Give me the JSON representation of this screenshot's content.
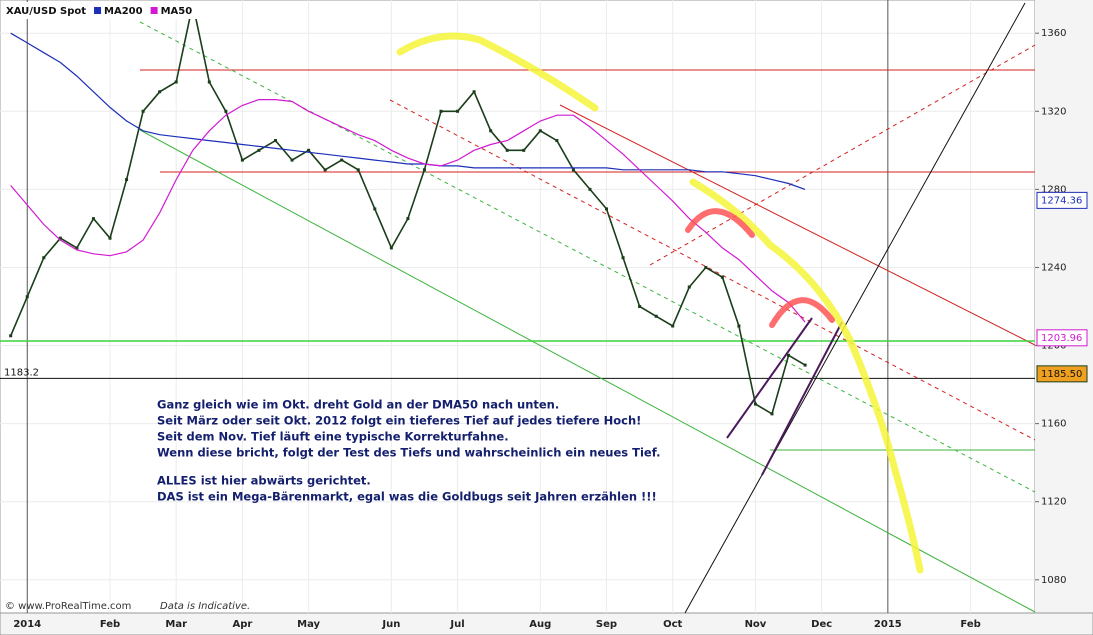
{
  "chart_data": {
    "type": "line",
    "categories": [
      null,
      "2014",
      null,
      null,
      null,
      null,
      "Feb",
      null,
      null,
      null,
      "Mar",
      null,
      null,
      null,
      "Apr",
      null,
      null,
      null,
      "May",
      null,
      null,
      null,
      null,
      "Jun",
      null,
      null,
      null,
      "Jul",
      null,
      null,
      null,
      null,
      "Aug",
      null,
      null,
      null,
      "Sep",
      null,
      null,
      null,
      "Oct",
      null,
      null,
      null,
      null,
      "Nov",
      null,
      null,
      null,
      "Dec",
      null,
      null,
      null,
      "2015",
      null,
      null,
      null,
      null,
      "Feb",
      null,
      null,
      null,
      null
    ],
    "series": [
      {
        "name": "XAU/USD Spot",
        "color": "#1a3d1a",
        "last": {
          "value": 1185.5,
          "label": "1185.50"
        },
        "values": [
          1205,
          1225,
          1245,
          1255,
          1250,
          1265,
          1255,
          1285,
          1320,
          1330,
          1335,
          1375,
          1335,
          1320,
          1295,
          1300,
          1305,
          1295,
          1300,
          1290,
          1295,
          1290,
          1270,
          1250,
          1265,
          1290,
          1320,
          1320,
          1330,
          1310,
          1300,
          1300,
          1310,
          1305,
          1290,
          1280,
          1270,
          1245,
          1220,
          1215,
          1210,
          1230,
          1240,
          1235,
          1210,
          1170,
          1165,
          1195,
          1190,
          null,
          null,
          null,
          null,
          null,
          null,
          null,
          null,
          null,
          null,
          null,
          null,
          null,
          null
        ]
      },
      {
        "name": "MA200",
        "color": "#1c2fb8",
        "last": {
          "value": 1274.36,
          "label": "1274.36"
        },
        "values": [
          1360,
          1355,
          1350,
          1345,
          1338,
          1330,
          1322,
          1315,
          1310,
          1308,
          1307,
          1306,
          1305,
          1304,
          1303,
          1302,
          1301,
          1300,
          1299,
          1298,
          1297,
          1296,
          1295,
          1294,
          1293,
          1293,
          1292,
          1292,
          1291,
          1291,
          1291,
          1291,
          1291,
          1291,
          1291,
          1291,
          1291,
          1290,
          1290,
          1290,
          1290,
          1290,
          1289,
          1289,
          1288,
          1287,
          1285,
          1283,
          1280,
          null,
          null,
          null,
          null,
          null,
          null,
          null,
          null,
          null,
          null,
          null,
          null,
          null,
          null
        ]
      },
      {
        "name": "MA50",
        "color": "#d21ad2",
        "last": {
          "value": 1203.96,
          "label": "1203.96"
        },
        "values": [
          1282,
          1272,
          1262,
          1254,
          1249,
          1247,
          1246,
          1248,
          1254,
          1268,
          1285,
          1300,
          1310,
          1318,
          1323,
          1326,
          1326,
          1325,
          1320,
          1316,
          1312,
          1308,
          1305,
          1300,
          1296,
          1293,
          1292,
          1295,
          1300,
          1303,
          1305,
          1310,
          1315,
          1318,
          1318,
          1312,
          1305,
          1298,
          1290,
          1282,
          1274,
          1265,
          1258,
          1250,
          1244,
          1236,
          1228,
          1222,
          1212,
          null,
          null,
          null,
          null,
          null,
          null,
          null,
          null,
          null,
          null,
          null,
          null,
          null,
          null
        ]
      }
    ],
    "reference_line": 1183.2,
    "ylim": [
      1063,
      1377
    ],
    "yticks": [
      1080,
      1120,
      1160,
      1200,
      1240,
      1280,
      1320,
      1360
    ],
    "grid": true,
    "annotations": [
      "Ganz gleich wie im Okt. dreht Gold an der DMA50 nach unten.",
      "Seit März oder seit Okt. 2012 folgt ein tieferes Tief auf jedes tiefere Hoch!",
      "Seit dem Nov. Tief läuft eine typische Korrekturfahne.",
      "Wenn diese bricht, folgt der Test des Tiefs und wahrscheinlich ein neues Tief.",
      "ALLES ist hier abwärts gerichtet.",
      "DAS ist ein Mega-Bärenmarkt, egal was die Goldbugs seit Jahren erzählen !!!"
    ],
    "footer": [
      "© www.ProRealTime.com",
      "Data is Indicative."
    ]
  }
}
